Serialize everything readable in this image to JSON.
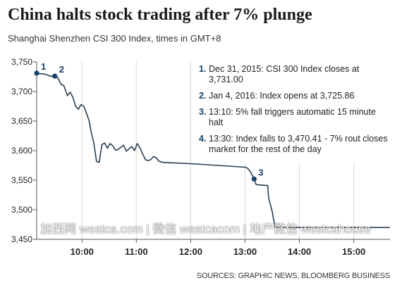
{
  "header": {
    "title": "China halts stock trading after 7% plunge",
    "subtitle": "Shanghai Shenzhen CSI 300 Index, times in GMT+8"
  },
  "annotations": [
    {
      "num": "1.",
      "text": "Dec 31, 2015: CSI 300 Index closes at 3,731.00"
    },
    {
      "num": "2.",
      "text": "Jan 4, 2016: Index opens at 3,725.86"
    },
    {
      "num": "3.",
      "text": "13:10: 5% fall triggers automatic 15 minute halt"
    },
    {
      "num": "4.",
      "text": "13:30: Index falls to 3,470.41 - 7% rout closes market for the rest of the day"
    }
  ],
  "watermark": "加西网 westca.com | 微信 westcacom | 地产微信 westcahouse",
  "footer": {
    "source": "SOURCES: GRAPHIC NEWS, BLOOMBERG BUSINESS"
  },
  "colors": {
    "line": "#2b3e4f",
    "accent": "#15416e",
    "grid": "#d8d8d8",
    "axis": "#555555"
  },
  "chart_data": {
    "type": "line",
    "title": "China halts stock trading after 7% plunge",
    "subtitle": "Shanghai Shenzhen CSI 300 Index, times in GMT+8",
    "xlabel": "",
    "ylabel": "",
    "xlim": [
      "09:10",
      "15:40"
    ],
    "ylim": [
      3450,
      3750
    ],
    "yticks": [
      3450,
      3500,
      3550,
      3600,
      3650,
      3700,
      3750
    ],
    "ytick_labels": [
      "3,450",
      "3,500",
      "3,550",
      "3,600",
      "3,650",
      "3,700",
      "3,750"
    ],
    "xticks": [
      "10:00",
      "11:00",
      "12:00",
      "13:00",
      "14:00",
      "15:00"
    ],
    "grid": "vertical",
    "series": [
      {
        "x": [
          "09:10",
          "09:20",
          "09:25",
          "09:30",
          "09:33",
          "09:37",
          "09:40",
          "09:44",
          "09:47",
          "09:50",
          "09:53",
          "09:56",
          "09:59",
          "10:02",
          "10:05",
          "10:08",
          "10:10",
          "10:13",
          "10:16",
          "10:19",
          "10:22",
          "10:25",
          "10:28",
          "10:31",
          "10:34",
          "10:37",
          "10:40",
          "10:43",
          "10:46",
          "10:49",
          "10:52",
          "10:55",
          "10:58",
          "11:01",
          "11:04",
          "11:07",
          "11:10",
          "11:13",
          "11:16",
          "11:19",
          "11:22",
          "11:25",
          "11:30",
          "12:00",
          "12:30",
          "13:00",
          "13:03",
          "13:06",
          "13:08",
          "13:10",
          "13:12",
          "13:15",
          "13:25",
          "13:26",
          "13:30",
          "13:33",
          "14:00",
          "14:30",
          "15:00",
          "15:30",
          "15:40"
        ],
        "y": [
          3731,
          3729,
          3726,
          3726,
          3724,
          3712,
          3710,
          3693,
          3699,
          3690,
          3675,
          3670,
          3678,
          3675,
          3663,
          3650,
          3632,
          3614,
          3582,
          3580,
          3610,
          3613,
          3604,
          3612,
          3608,
          3601,
          3602,
          3606,
          3609,
          3599,
          3603,
          3607,
          3600,
          3612,
          3605,
          3594,
          3585,
          3583,
          3585,
          3590,
          3588,
          3582,
          3580,
          3578,
          3575,
          3572,
          3570,
          3564,
          3558,
          3552,
          3543,
          3542,
          3541,
          3520,
          3497,
          3470,
          3470,
          3470,
          3470,
          3470,
          3470
        ]
      }
    ],
    "markers": [
      {
        "label": "1",
        "x": "09:10",
        "y": 3731
      },
      {
        "label": "2",
        "x": "09:30",
        "y": 3726
      },
      {
        "label": "3",
        "x": "13:10",
        "y": 3552
      }
    ]
  }
}
